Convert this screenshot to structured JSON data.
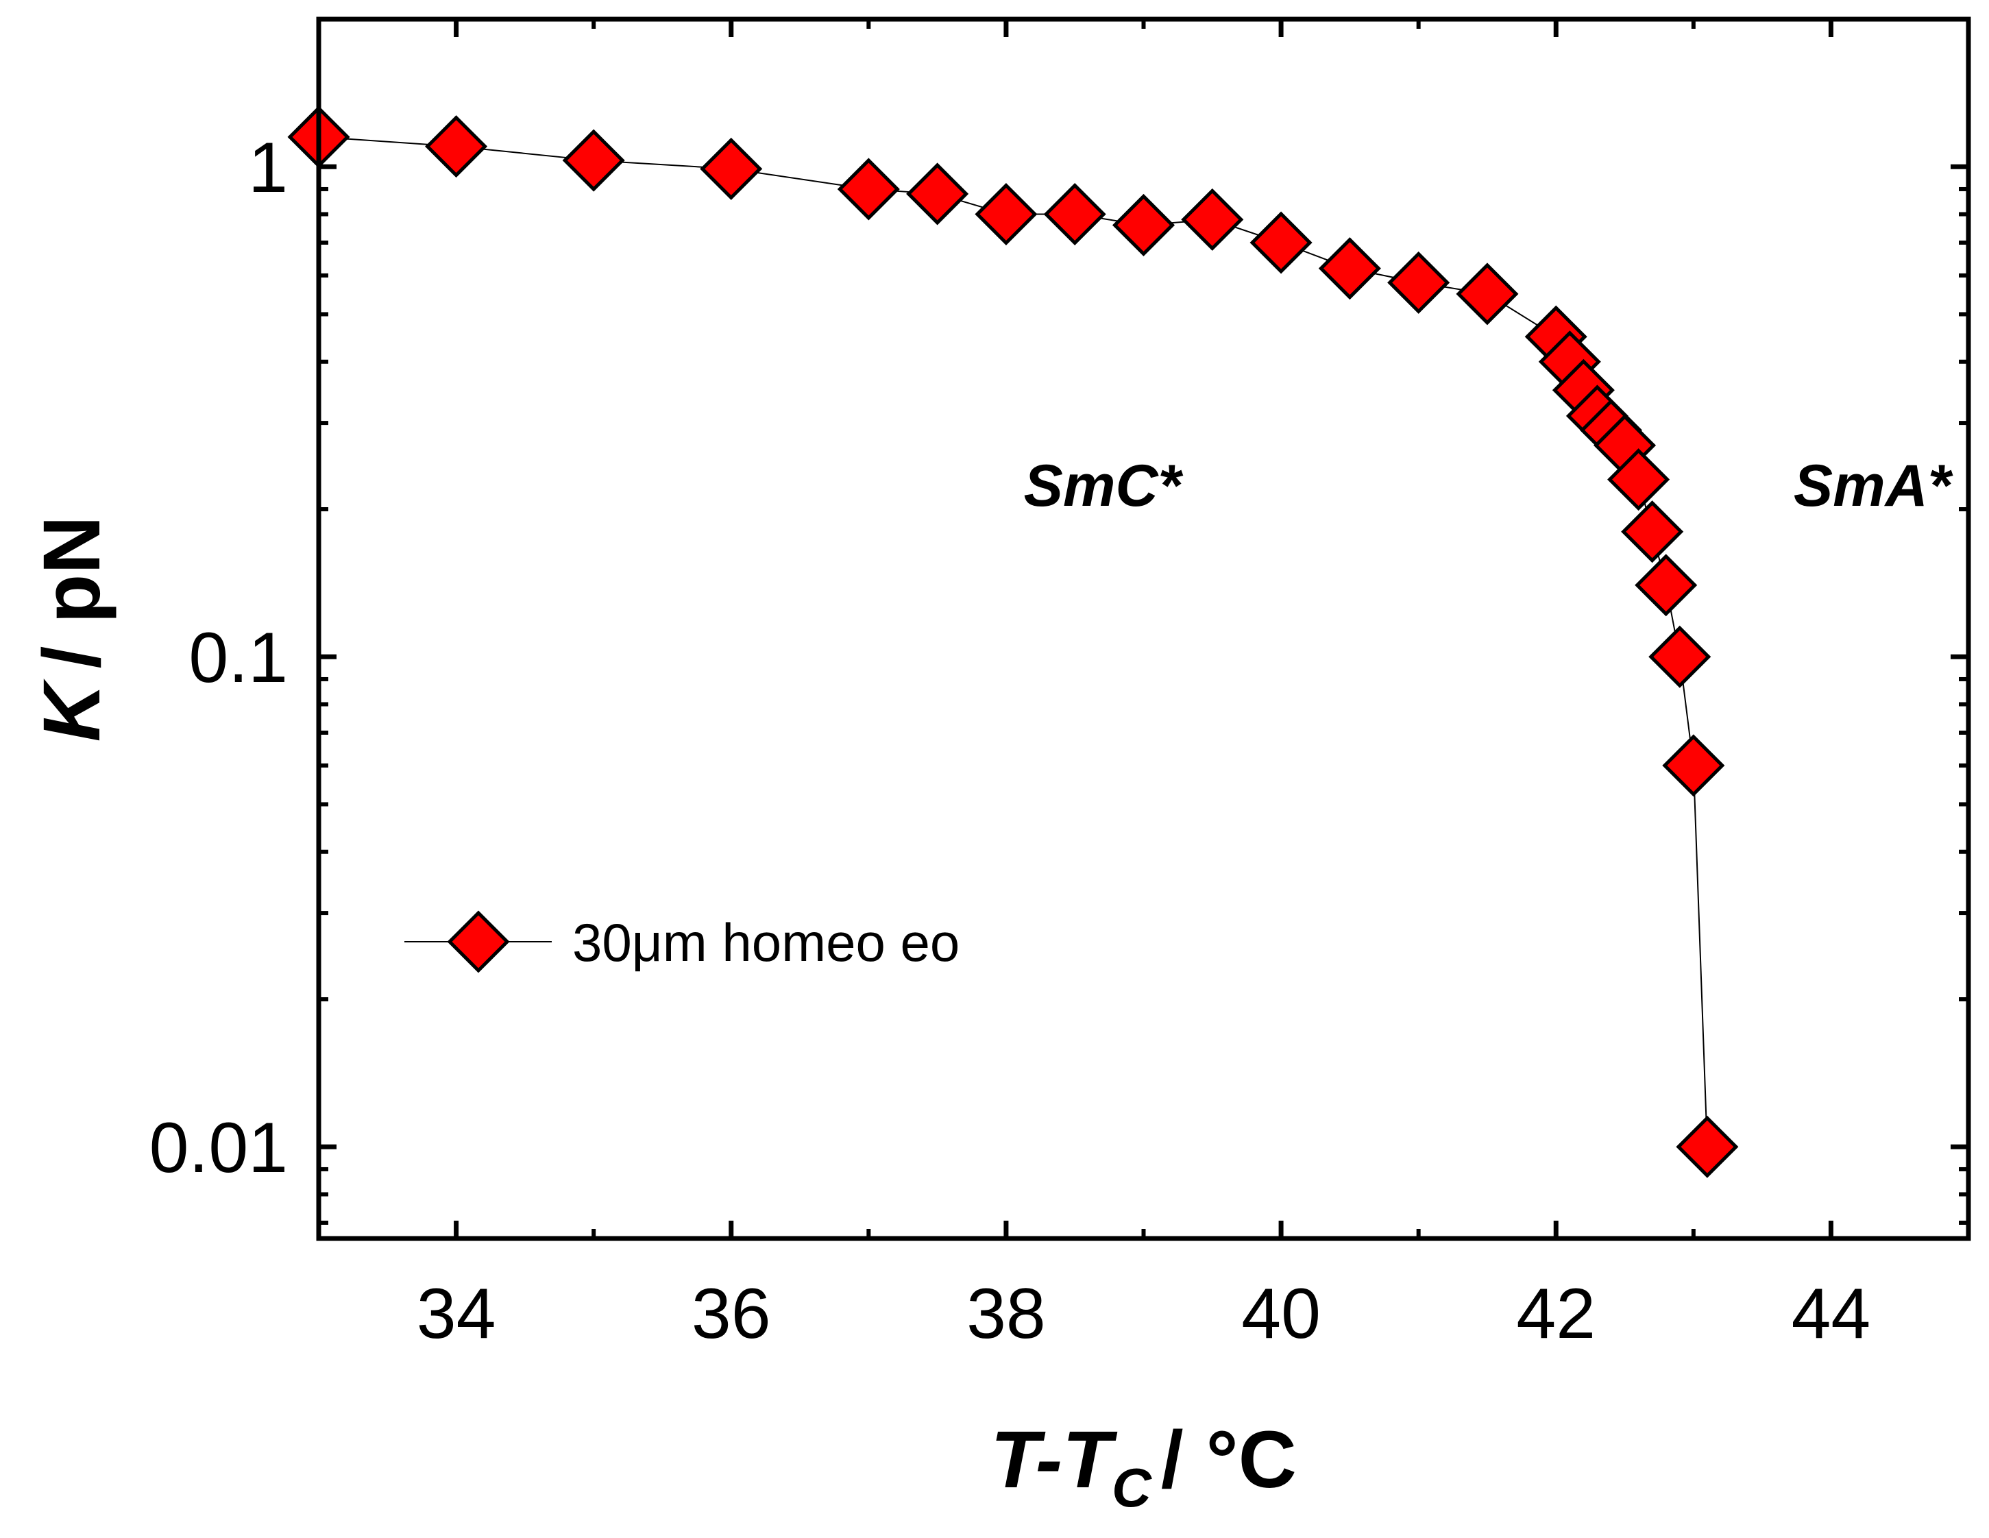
{
  "chart_data": {
    "type": "scatter",
    "title": "",
    "xlabel": "T-T",
    "xlabel_sub": "C",
    "xlabel_unit": "/ °C",
    "ylabel_italic": "K",
    "ylabel_unit": "/ pN",
    "xlim": [
      33,
      45
    ],
    "ylim": [
      0.0065,
      2
    ],
    "yscale": "log",
    "x_ticks": [
      34,
      36,
      38,
      40,
      42,
      44
    ],
    "x_tick_labels": [
      "34",
      "36",
      "38",
      "40",
      "42",
      "44"
    ],
    "y_ticks": [
      0.01,
      0.1,
      1
    ],
    "y_tick_labels": [
      "0.01",
      "0.1",
      "1"
    ],
    "legend_position": "lower-left",
    "colors": {
      "marker_fill": "#ff0000",
      "marker_edge": "#000000",
      "line": "#000000",
      "axis": "#000000"
    },
    "series": [
      {
        "name": "30μm homeo eo",
        "marker": "diamond",
        "x": [
          33.0,
          34.0,
          35.0,
          36.0,
          37.0,
          37.5,
          38.0,
          38.5,
          39.0,
          39.5,
          40.0,
          40.5,
          41.0,
          41.5,
          42.0,
          42.1,
          42.2,
          42.3,
          42.4,
          42.5,
          42.6,
          42.7,
          42.8,
          42.9,
          43.0,
          43.1
        ],
        "y": [
          1.15,
          1.1,
          1.03,
          0.99,
          0.9,
          0.88,
          0.8,
          0.8,
          0.76,
          0.78,
          0.7,
          0.62,
          0.58,
          0.55,
          0.45,
          0.4,
          0.35,
          0.31,
          0.29,
          0.27,
          0.23,
          0.18,
          0.14,
          0.1,
          0.06,
          0.01
        ]
      }
    ],
    "annotations": [
      {
        "text": "SmC*",
        "x": 38.7,
        "y": 0.2
      },
      {
        "text": "SmA*",
        "x": 44.3,
        "y": 0.2
      }
    ]
  }
}
